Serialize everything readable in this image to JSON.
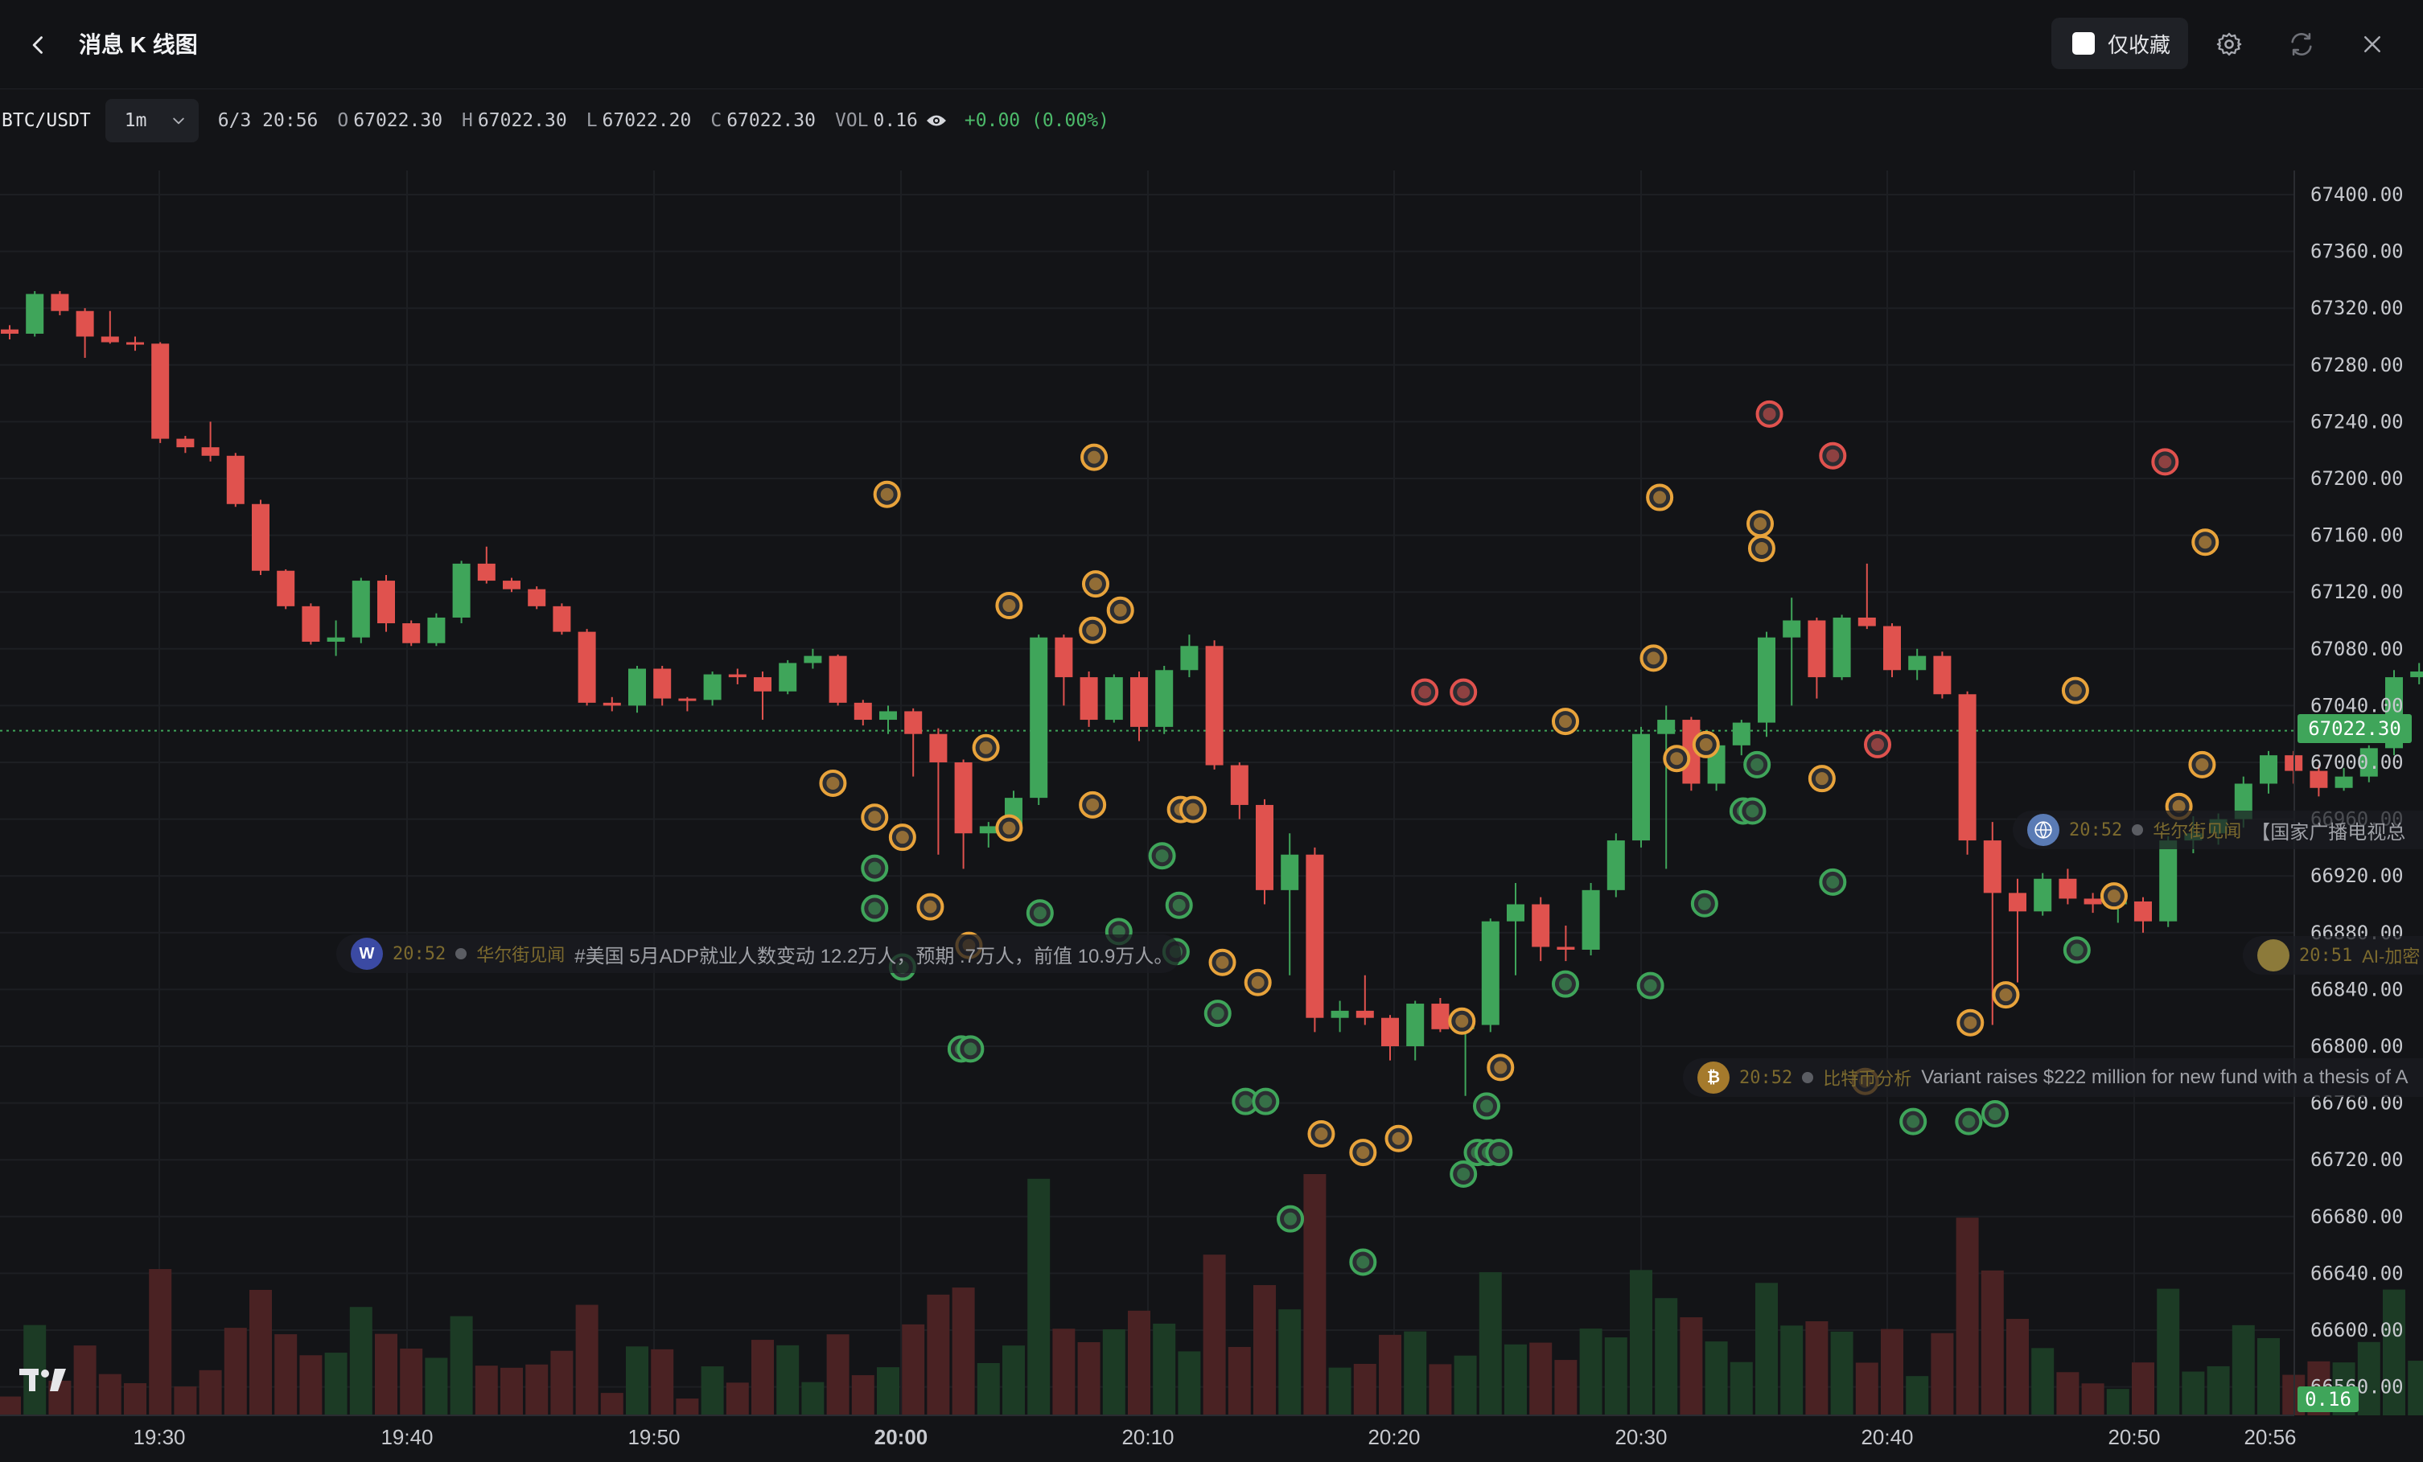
{
  "header": {
    "title": "消息 K 线图",
    "favorites_only_label": "仅收藏"
  },
  "info": {
    "symbol": "BTC/USDT",
    "interval": "1m",
    "datetime": "6/3 20:56",
    "open_label": "O",
    "open": "67022.30",
    "high_label": "H",
    "high": "67022.30",
    "low_label": "L",
    "low": "67022.20",
    "close_label": "C",
    "close": "67022.30",
    "vol_label": "VOL",
    "vol": "0.16",
    "change": "+0.00 (0.00%)"
  },
  "price_axis": {
    "ticks": [
      "67400.00",
      "67360.00",
      "67320.00",
      "67280.00",
      "67240.00",
      "67200.00",
      "67160.00",
      "67120.00",
      "67080.00",
      "67040.00",
      "67000.00",
      "66960.00",
      "66920.00",
      "66880.00",
      "66840.00",
      "66800.00",
      "66760.00",
      "66720.00",
      "66680.00",
      "66640.00",
      "66600.00",
      "66560.00"
    ],
    "current_price": "67022.30",
    "current_volume": "0.16"
  },
  "time_axis": {
    "labels": [
      "19:30",
      "19:40",
      "19:50",
      "20:00",
      "20:10",
      "20:20",
      "20:30",
      "20:40",
      "20:50",
      "20:56"
    ]
  },
  "news": [
    {
      "time": "20:52",
      "source": "华尔街见闻",
      "text": "#美国 5月ADP就业人数变动 12.2万人，预期 .7万人，前值 10.9万人。",
      "icon": "wallstreetcn-icon",
      "icon_letter": "W",
      "icon_color": "#3b4aa3"
    },
    {
      "time": "20:52",
      "source": "华尔街见闻",
      "text": "【国家广播电视总",
      "icon": "news-globe-icon",
      "icon_letter": "",
      "icon_color": "#5a7bb5"
    },
    {
      "time": "20:51",
      "source": "AI-加密",
      "text": "",
      "icon": "ai-crypto-icon",
      "icon_letter": "",
      "icon_color": "#8c7a3a"
    },
    {
      "time": "20:52",
      "source": "比特币分析",
      "text": "Variant raises $222 million for new fund with a thesis of A",
      "icon": "bitcoin-analysis-icon",
      "icon_letter": "₿",
      "icon_color": "#a57a2c"
    }
  ],
  "chart_data": {
    "type": "candlestick",
    "symbol": "BTC/USDT",
    "interval": "1m",
    "ylim": [
      66540,
      67420
    ],
    "x_labels": [
      "19:30",
      "19:40",
      "19:50",
      "20:00",
      "20:10",
      "20:20",
      "20:30",
      "20:40",
      "20:50",
      "20:56"
    ],
    "candles": [
      [
        67305,
        67308,
        67298,
        67302
      ],
      [
        67302,
        67332,
        67300,
        67330
      ],
      [
        67330,
        67332,
        67315,
        67318
      ],
      [
        67318,
        67320,
        67285,
        67300
      ],
      [
        67300,
        67318,
        67295,
        67296
      ],
      [
        67296,
        67300,
        67290,
        67295
      ],
      [
        67295,
        67296,
        67225,
        67228
      ],
      [
        67228,
        67230,
        67218,
        67222
      ],
      [
        67222,
        67240,
        67212,
        67216
      ],
      [
        67216,
        67218,
        67180,
        67182
      ],
      [
        67182,
        67185,
        67132,
        67135
      ],
      [
        67135,
        67136,
        67108,
        67110
      ],
      [
        67110,
        67112,
        67083,
        67085
      ],
      [
        67085,
        67100,
        67075,
        67088
      ],
      [
        67088,
        67130,
        67084,
        67128
      ],
      [
        67128,
        67132,
        67092,
        67098
      ],
      [
        67098,
        67100,
        67082,
        67084
      ],
      [
        67084,
        67105,
        67082,
        67102
      ],
      [
        67102,
        67142,
        67098,
        67140
      ],
      [
        67140,
        67152,
        67126,
        67128
      ],
      [
        67128,
        67130,
        67120,
        67122
      ],
      [
        67122,
        67124,
        67108,
        67110
      ],
      [
        67110,
        67112,
        67090,
        67092
      ],
      [
        67092,
        67094,
        67040,
        67042
      ],
      [
        67042,
        67046,
        67036,
        67040
      ],
      [
        67040,
        67068,
        67035,
        67066
      ],
      [
        67066,
        67068,
        67040,
        67045
      ],
      [
        67045,
        67046,
        67036,
        67044
      ],
      [
        67044,
        67064,
        67040,
        67062
      ],
      [
        67062,
        67066,
        67055,
        67060
      ],
      [
        67060,
        67064,
        67030,
        67050
      ],
      [
        67050,
        67072,
        67048,
        67070
      ],
      [
        67070,
        67080,
        67066,
        67075
      ],
      [
        67075,
        67076,
        67040,
        67042
      ],
      [
        67042,
        67044,
        67026,
        67030
      ],
      [
        67030,
        67040,
        67020,
        67036
      ],
      [
        67036,
        67038,
        66990,
        67020
      ],
      [
        67020,
        67024,
        66935,
        67000
      ],
      [
        67000,
        67002,
        66925,
        66950
      ],
      [
        66950,
        66958,
        66940,
        66955
      ],
      [
        66955,
        66980,
        66950,
        66975
      ],
      [
        66975,
        67090,
        66970,
        67088
      ],
      [
        67088,
        67090,
        67040,
        67060
      ],
      [
        67060,
        67064,
        67025,
        67030
      ],
      [
        67030,
        67062,
        67028,
        67060
      ],
      [
        67060,
        67064,
        67015,
        67025
      ],
      [
        67025,
        67068,
        67020,
        67065
      ],
      [
        67065,
        67090,
        67060,
        67082
      ],
      [
        67082,
        67086,
        66995,
        66998
      ],
      [
        66998,
        67000,
        66960,
        66970
      ],
      [
        66970,
        66974,
        66900,
        66910
      ],
      [
        66910,
        66950,
        66850,
        66935
      ],
      [
        66935,
        66940,
        66810,
        66820
      ],
      [
        66820,
        66832,
        66810,
        66825
      ],
      [
        66825,
        66850,
        66815,
        66820
      ],
      [
        66820,
        66822,
        66790,
        66800
      ],
      [
        66800,
        66832,
        66790,
        66830
      ],
      [
        66830,
        66834,
        66810,
        66812
      ],
      [
        66812,
        66820,
        66765,
        66815
      ],
      [
        66815,
        66890,
        66810,
        66888
      ],
      [
        66888,
        66915,
        66850,
        66900
      ],
      [
        66900,
        66905,
        66860,
        66870
      ],
      [
        66870,
        66885,
        66860,
        66868
      ],
      [
        66868,
        66915,
        66864,
        66910
      ],
      [
        66910,
        66950,
        66905,
        66945
      ],
      [
        66945,
        67025,
        66940,
        67020
      ],
      [
        67020,
        67040,
        66925,
        67030
      ],
      [
        67030,
        67032,
        66980,
        66985
      ],
      [
        66985,
        67016,
        66980,
        67012
      ],
      [
        67012,
        67030,
        67005,
        67028
      ],
      [
        67028,
        67092,
        67018,
        67088
      ],
      [
        67088,
        67116,
        67040,
        67100
      ],
      [
        67100,
        67102,
        67045,
        67060
      ],
      [
        67060,
        67104,
        67058,
        67102
      ],
      [
        67102,
        67140,
        67094,
        67096
      ],
      [
        67096,
        67098,
        67060,
        67065
      ],
      [
        67065,
        67080,
        67058,
        67075
      ],
      [
        67075,
        67078,
        67045,
        67048
      ],
      [
        67048,
        67050,
        66935,
        66945
      ],
      [
        66945,
        66958,
        66815,
        66908
      ],
      [
        66908,
        66918,
        66845,
        66895
      ],
      [
        66895,
        66922,
        66892,
        66918
      ],
      [
        66918,
        66925,
        66900,
        66904
      ],
      [
        66904,
        66908,
        66894,
        66900
      ],
      [
        66900,
        66905,
        66887,
        66902
      ],
      [
        66902,
        66905,
        66880,
        66888
      ],
      [
        66888,
        66948,
        66884,
        66945
      ],
      [
        66945,
        66962,
        66936,
        66950
      ],
      [
        66950,
        66964,
        66942,
        66960
      ],
      [
        66960,
        66990,
        66954,
        66985
      ],
      [
        66985,
        67008,
        66978,
        67005
      ],
      [
        67005,
        67008,
        66985,
        66994
      ],
      [
        66994,
        66998,
        66976,
        66982
      ],
      [
        66982,
        66996,
        66980,
        66990
      ],
      [
        66990,
        67012,
        66986,
        67010
      ],
      [
        67010,
        67065,
        67005,
        67060
      ],
      [
        67060,
        67070,
        67055,
        67064
      ],
      [
        67064,
        67096,
        67060,
        67074
      ],
      [
        67074,
        67076,
        67030,
        67035
      ],
      [
        67035,
        67040,
        67015,
        67022
      ]
    ]
  },
  "news_markers": [
    {
      "x": 574,
      "y": 320,
      "ring": "#e8a33b",
      "icon": "news-source-icon"
    },
    {
      "x": 708,
      "y": 296,
      "ring": "#e8a33b",
      "icon": "news-source-icon"
    },
    {
      "x": 653,
      "y": 392,
      "ring": "#e8a33b",
      "icon": "news-source-icon"
    },
    {
      "x": 709,
      "y": 378,
      "ring": "#e8a33b",
      "icon": "news-source-icon"
    },
    {
      "x": 725,
      "y": 395,
      "ring": "#e8a33b",
      "icon": "news-source-icon"
    },
    {
      "x": 707,
      "y": 408,
      "ring": "#e8a33b",
      "icon": "news-source-icon"
    },
    {
      "x": 638,
      "y": 484,
      "ring": "#e8a33b",
      "icon": "news-source-icon"
    },
    {
      "x": 539,
      "y": 507,
      "ring": "#e8a33b",
      "icon": "news-source-icon"
    },
    {
      "x": 566,
      "y": 529,
      "ring": "#e8a33b",
      "icon": "news-source-icon"
    },
    {
      "x": 584,
      "y": 542,
      "ring": "#e8a33b",
      "icon": "news-source-icon"
    },
    {
      "x": 653,
      "y": 536,
      "ring": "#e8a33b",
      "icon": "news-source-icon"
    },
    {
      "x": 707,
      "y": 521,
      "ring": "#e8a33b",
      "icon": "news-source-icon"
    },
    {
      "x": 764,
      "y": 524,
      "ring": "#e8a33b",
      "icon": "news-source-icon"
    },
    {
      "x": 772,
      "y": 524,
      "ring": "#e8a33b",
      "icon": "news-source-icon"
    },
    {
      "x": 566,
      "y": 562,
      "ring": "#3fa55a",
      "icon": "news-source-icon"
    },
    {
      "x": 566,
      "y": 588,
      "ring": "#3fa55a",
      "icon": "news-source-icon"
    },
    {
      "x": 602,
      "y": 587,
      "ring": "#e8a33b",
      "icon": "news-source-icon"
    },
    {
      "x": 673,
      "y": 591,
      "ring": "#3fa55a",
      "icon": "news-source-icon"
    },
    {
      "x": 724,
      "y": 603,
      "ring": "#3fa55a",
      "icon": "news-source-icon"
    },
    {
      "x": 752,
      "y": 554,
      "ring": "#3fa55a",
      "icon": "news-source-icon"
    },
    {
      "x": 763,
      "y": 586,
      "ring": "#3fa55a",
      "icon": "news-source-icon"
    },
    {
      "x": 761,
      "y": 616,
      "ring": "#3fa55a",
      "icon": "news-source-icon"
    },
    {
      "x": 627,
      "y": 612,
      "ring": "#e8a33b",
      "icon": "news-source-icon"
    },
    {
      "x": 584,
      "y": 626,
      "ring": "#3fa55a",
      "icon": "news-source-icon"
    },
    {
      "x": 622,
      "y": 679,
      "ring": "#3fa55a",
      "icon": "news-source-icon"
    },
    {
      "x": 628,
      "y": 679,
      "ring": "#3fa55a",
      "icon": "news-source-icon"
    },
    {
      "x": 791,
      "y": 623,
      "ring": "#e8a33b",
      "icon": "news-source-icon"
    },
    {
      "x": 814,
      "y": 636,
      "ring": "#e8a33b",
      "icon": "news-source-icon"
    },
    {
      "x": 788,
      "y": 656,
      "ring": "#3fa55a",
      "icon": "news-source-icon"
    },
    {
      "x": 806,
      "y": 713,
      "ring": "#3fa55a",
      "icon": "news-source-icon"
    },
    {
      "x": 819,
      "y": 713,
      "ring": "#3fa55a",
      "icon": "news-source-icon"
    },
    {
      "x": 855,
      "y": 734,
      "ring": "#e8a33b",
      "icon": "news-source-icon"
    },
    {
      "x": 882,
      "y": 746,
      "ring": "#e8a33b",
      "icon": "news-source-icon"
    },
    {
      "x": 905,
      "y": 737,
      "ring": "#e8a33b",
      "icon": "news-source-icon"
    },
    {
      "x": 835,
      "y": 789,
      "ring": "#3fa55a",
      "icon": "news-source-icon"
    },
    {
      "x": 882,
      "y": 817,
      "ring": "#3fa55a",
      "icon": "news-source-icon"
    },
    {
      "x": 922,
      "y": 448,
      "ring": "#e0524e",
      "icon": "news-source-icon"
    },
    {
      "x": 947,
      "y": 448,
      "ring": "#e0524e",
      "icon": "news-source-icon"
    },
    {
      "x": 946,
      "y": 661,
      "ring": "#e8a33b",
      "icon": "news-source-icon"
    },
    {
      "x": 971,
      "y": 691,
      "ring": "#e8a33b",
      "icon": "news-source-icon"
    },
    {
      "x": 962,
      "y": 716,
      "ring": "#3fa55a",
      "icon": "news-source-icon"
    },
    {
      "x": 956,
      "y": 746,
      "ring": "#3fa55a",
      "icon": "news-source-icon"
    },
    {
      "x": 963,
      "y": 746,
      "ring": "#3fa55a",
      "icon": "news-source-icon"
    },
    {
      "x": 970,
      "y": 746,
      "ring": "#3fa55a",
      "icon": "news-source-icon"
    },
    {
      "x": 947,
      "y": 760,
      "ring": "#3fa55a",
      "icon": "news-source-icon"
    },
    {
      "x": 1013,
      "y": 467,
      "ring": "#e8a33b",
      "icon": "news-source-icon"
    },
    {
      "x": 1013,
      "y": 637,
      "ring": "#3fa55a",
      "icon": "news-source-icon"
    },
    {
      "x": 1068,
      "y": 638,
      "ring": "#3fa55a",
      "icon": "news-source-icon"
    },
    {
      "x": 1074,
      "y": 322,
      "ring": "#e8a33b",
      "icon": "news-source-icon"
    },
    {
      "x": 1070,
      "y": 426,
      "ring": "#e8a33b",
      "icon": "news-source-icon"
    },
    {
      "x": 1085,
      "y": 491,
      "ring": "#e8a33b",
      "icon": "news-source-icon"
    },
    {
      "x": 1104,
      "y": 482,
      "ring": "#e8a33b",
      "icon": "news-source-icon"
    },
    {
      "x": 1103,
      "y": 585,
      "ring": "#3fa55a",
      "icon": "news-source-icon"
    },
    {
      "x": 1128,
      "y": 525,
      "ring": "#3fa55a",
      "icon": "news-source-icon"
    },
    {
      "x": 1134,
      "y": 525,
      "ring": "#3fa55a",
      "icon": "news-source-icon"
    },
    {
      "x": 1137,
      "y": 495,
      "ring": "#3fa55a",
      "icon": "news-source-icon"
    },
    {
      "x": 1145,
      "y": 268,
      "ring": "#e0524e",
      "icon": "news-source-icon"
    },
    {
      "x": 1186,
      "y": 295,
      "ring": "#e0524e",
      "icon": "news-source-icon"
    },
    {
      "x": 1139,
      "y": 339,
      "ring": "#e8a33b",
      "icon": "news-source-icon"
    },
    {
      "x": 1140,
      "y": 355,
      "ring": "#e8a33b",
      "icon": "news-source-icon"
    },
    {
      "x": 1179,
      "y": 504,
      "ring": "#e8a33b",
      "icon": "news-source-icon"
    },
    {
      "x": 1186,
      "y": 571,
      "ring": "#3fa55a",
      "icon": "news-source-icon"
    },
    {
      "x": 1215,
      "y": 482,
      "ring": "#e0524e",
      "icon": "news-source-icon"
    },
    {
      "x": 1207,
      "y": 700,
      "ring": "#e8a33b",
      "icon": "news-source-icon"
    },
    {
      "x": 1238,
      "y": 726,
      "ring": "#3fa55a",
      "icon": "news-source-icon"
    },
    {
      "x": 1274,
      "y": 726,
      "ring": "#3fa55a",
      "icon": "news-source-icon"
    },
    {
      "x": 1291,
      "y": 721,
      "ring": "#3fa55a",
      "icon": "news-source-icon"
    },
    {
      "x": 1275,
      "y": 662,
      "ring": "#e8a33b",
      "icon": "news-source-icon"
    },
    {
      "x": 1298,
      "y": 644,
      "ring": "#e8a33b",
      "icon": "news-source-icon"
    },
    {
      "x": 1344,
      "y": 615,
      "ring": "#3fa55a",
      "icon": "news-source-icon"
    },
    {
      "x": 1368,
      "y": 580,
      "ring": "#e8a33b",
      "icon": "news-source-icon"
    },
    {
      "x": 1343,
      "y": 447,
      "ring": "#e8a33b",
      "icon": "news-source-icon"
    },
    {
      "x": 1410,
      "y": 522,
      "ring": "#e8a33b",
      "icon": "news-source-icon"
    },
    {
      "x": 1425,
      "y": 495,
      "ring": "#e8a33b",
      "icon": "news-source-icon"
    },
    {
      "x": 1401,
      "y": 299,
      "ring": "#e0524e",
      "icon": "news-source-icon"
    },
    {
      "x": 1427,
      "y": 351,
      "ring": "#e8a33b",
      "icon": "news-source-icon"
    }
  ],
  "colors": {
    "up": "#3fa55a",
    "down": "#e0524e",
    "background": "#131417",
    "grid": "#1d1f23"
  }
}
